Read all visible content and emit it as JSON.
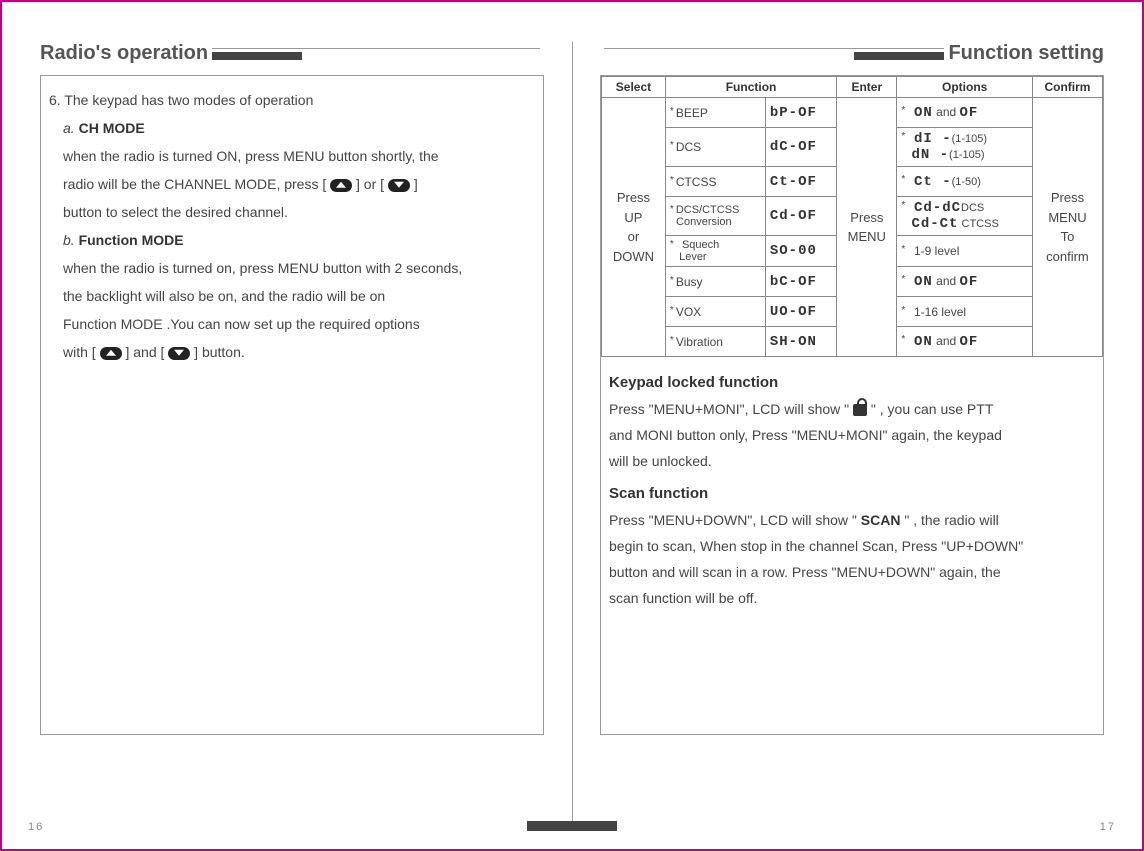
{
  "left": {
    "title": "Radio's operation",
    "intro_line": "6. The keypad has two modes of operation",
    "mode_a_label": "a.",
    "mode_a_name": "CH MODE",
    "mode_a_text1": "when the radio is turned ON, press MENU button shortly, the",
    "mode_a_text2": "radio will be the CHANNEL MODE, press [",
    "mode_a_text3": "] or [",
    "mode_a_text4": "]",
    "mode_a_text5": "button to select the desired channel.",
    "mode_b_label": "b.",
    "mode_b_name": "Function MODE",
    "mode_b_text1": "when the radio is turned on, press MENU button with 2 seconds,",
    "mode_b_text2": "the backlight will also be on, and the radio will be on",
    "mode_b_text3": "Function MODE .You can now set up the required options",
    "mode_b_text4a": "with  [",
    "mode_b_text4b": "] and [",
    "mode_b_text4c": "] button."
  },
  "right": {
    "title": "Function setting",
    "table": {
      "headers": {
        "select": "Select",
        "function": "Function",
        "enter": "Enter",
        "options": "Options",
        "confirm": "Confirm"
      },
      "select_text_1": "Press",
      "select_text_2": "UP",
      "select_text_3": "or",
      "select_text_4": "DOWN",
      "enter_text_1": "Press",
      "enter_text_2": "MENU",
      "confirm_text_1": "Press",
      "confirm_text_2": "MENU",
      "confirm_text_3": "To",
      "confirm_text_4": "confirm",
      "rows": [
        {
          "name": "BEEP",
          "code": "bP-OF",
          "opt_pre": "ON",
          "opt_mid": " and ",
          "opt_post": "OF"
        },
        {
          "name": "DCS",
          "code": "dC-OF",
          "opt_l1a": "dI -",
          "opt_l1b": "(1-105)",
          "opt_l2a": "dN -",
          "opt_l2b": "(1-105)"
        },
        {
          "name": "CTCSS",
          "code": "Ct-OF",
          "opt_pre": "Ct -",
          "opt_post": "(1-50)"
        },
        {
          "name_l1": "DCS/CTCSS",
          "name_l2": "Conversion",
          "code": "Cd-OF",
          "opt_l1a": "Cd-dC",
          "opt_l1b": "DCS",
          "opt_l2a": "Cd-Ct",
          "opt_l2b": " CTCSS"
        },
        {
          "name_l1": "Squech",
          "name_l2": "Lever",
          "code": "SO-00",
          "opt": "1-9 level"
        },
        {
          "name": "Busy",
          "code": "bC-OF",
          "opt_pre": "ON",
          "opt_mid": " and ",
          "opt_post": "OF"
        },
        {
          "name": "VOX",
          "code": "UO-OF",
          "opt": "1-16 level"
        },
        {
          "name": "Vibration",
          "code": "SH-ON",
          "opt_pre": "ON",
          "opt_mid": " and ",
          "opt_post": "OF"
        }
      ]
    },
    "keypad_h": "Keypad locked function",
    "keypad_1a": "Press \"MENU+MONI\", LCD will show  \"",
    "keypad_1b": "\" , you can use PTT",
    "keypad_2": "and MONI button only, Press \"MENU+MONI\" again, the keypad",
    "keypad_3": "will be unlocked.",
    "scan_h": "Scan function",
    "scan_1a": "Press \"MENU+DOWN\", LCD will show \"",
    "scan_1b": "SCAN",
    "scan_1c": "\" , the radio will",
    "scan_2": "begin to scan, When stop in the channel Scan, Press \"UP+DOWN\"",
    "scan_3": "button and will scan in a row. Press \"MENU+DOWN\" again, the",
    "scan_4": "scan function will be off."
  },
  "page_left": "16",
  "page_right": "17"
}
